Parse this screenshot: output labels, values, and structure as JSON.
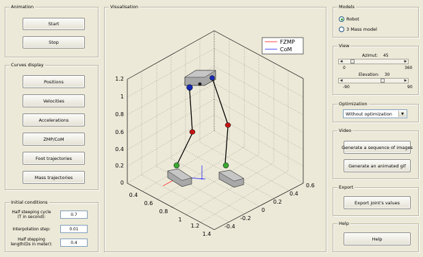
{
  "animation": {
    "title": "Animation",
    "start_label": "Start",
    "stop_label": "Stop"
  },
  "curves": {
    "title": "Curves display",
    "buttons": [
      "Positions",
      "Velocities",
      "Accelerations",
      "ZMP/CoM",
      "Foot trajectories",
      "Mass trajectories"
    ]
  },
  "initial": {
    "title": "Initial conditions",
    "half_cycle_label_1": "Half steeping cycle",
    "half_cycle_label_2": "(T in second):",
    "half_cycle_value": "0.7",
    "interp_label": "Interpolation step:",
    "interp_value": "0.01",
    "half_length_label_1": "Half stepping",
    "half_length_label_2": "length(Ds in meter):",
    "half_length_value": "0.4"
  },
  "visualisation": {
    "title": "Visualisation",
    "legend": [
      {
        "name": "FZMP",
        "color": "#ff0000"
      },
      {
        "name": "CoM",
        "color": "#0000ff"
      }
    ],
    "z_ticks": [
      "0",
      "0.2",
      "0.4",
      "0.6",
      "0.8",
      "1",
      "1.2"
    ],
    "x_ticks": [
      "0.4",
      "0.6",
      "0.8",
      "1",
      "1.2",
      "1.4"
    ],
    "y_ticks": [
      "-0.4",
      "-0.2",
      "0",
      "0.2",
      "0.4",
      "0.6"
    ]
  },
  "models": {
    "title": "Models",
    "options": [
      {
        "label": "Robot",
        "selected": true
      },
      {
        "label": "3 Mass model",
        "selected": false
      }
    ]
  },
  "view": {
    "title": "View",
    "azimut_label": "Azimut:",
    "azimut_value": "45",
    "azimut_min": "0",
    "azimut_max": "360",
    "azimut_fraction": 0.125,
    "elevation_label": "Elevation:",
    "elevation_value": "30",
    "elevation_min": "-90",
    "elevation_max": "90",
    "elevation_fraction": 0.667
  },
  "optimization": {
    "title": "Optimization",
    "selected": "Without optimization"
  },
  "video": {
    "title": "Video",
    "seq_label": "Generate a sequence of images",
    "gif_label": "Generate an animated gif"
  },
  "export": {
    "title": "Export",
    "button_label": "Export joint's values"
  },
  "help": {
    "title": "Help",
    "button_label": "Help"
  }
}
